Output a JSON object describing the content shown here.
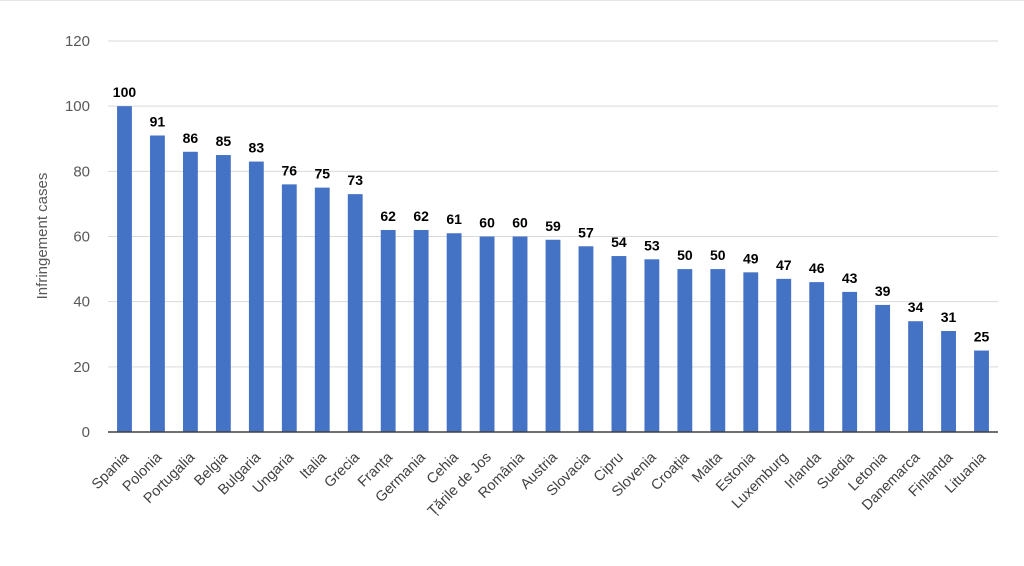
{
  "chart_data": {
    "type": "bar",
    "title": "",
    "xlabel": "",
    "ylabel": "Infringement cases",
    "ylim": [
      0,
      120
    ],
    "yticks": [
      0,
      20,
      40,
      60,
      80,
      100,
      120
    ],
    "grid": true,
    "categories": [
      "Spania",
      "Polonia",
      "Portugalia",
      "Belgia",
      "Bulgaria",
      "Ungaria",
      "Italia",
      "Grecia",
      "Franța",
      "Germania",
      "Cehia",
      "Țările de Jos",
      "România",
      "Austria",
      "Slovacia",
      "Cipru",
      "Slovenia",
      "Croația",
      "Malta",
      "Estonia",
      "Luxemburg",
      "Irlanda",
      "Suedia",
      "Letonia",
      "Danemarca",
      "Finlanda",
      "Lituania"
    ],
    "values": [
      100,
      91,
      86,
      85,
      83,
      76,
      75,
      73,
      62,
      62,
      61,
      60,
      60,
      59,
      57,
      54,
      53,
      50,
      50,
      49,
      47,
      46,
      43,
      39,
      34,
      31,
      25
    ],
    "bar_color": "#4472c4",
    "grid_color": "#d9d9d9",
    "axis_color": "#404040"
  }
}
